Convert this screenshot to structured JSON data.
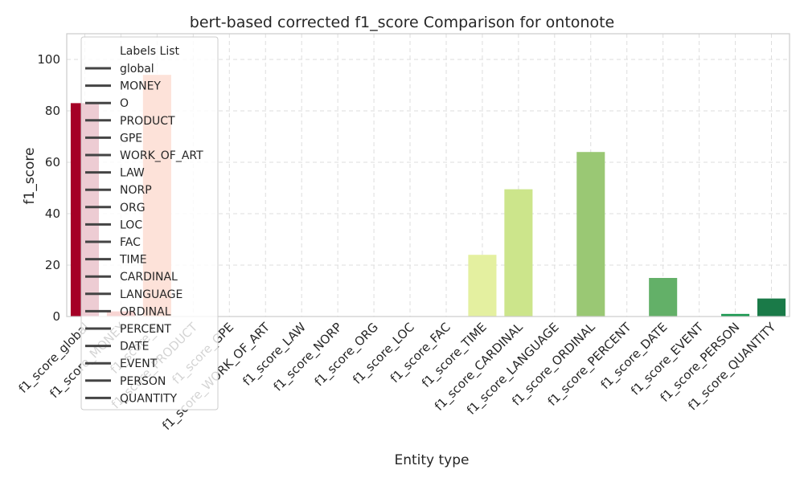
{
  "chart_data": {
    "type": "bar",
    "title": "bert-based corrected f1_score Comparison for ontonote",
    "xlabel": "Entity type",
    "ylabel": "f1_score",
    "ylim": [
      0,
      110
    ],
    "yticks": [
      0,
      20,
      40,
      60,
      80,
      100
    ],
    "grid": true,
    "categories": [
      "f1_score_global",
      "f1_score_MONEY",
      "f1_score_O",
      "f1_score_PRODUCT",
      "f1_score_GPE",
      "f1_score_WORK_OF_ART",
      "f1_score_LAW",
      "f1_score_NORP",
      "f1_score_ORG",
      "f1_score_LOC",
      "f1_score_FAC",
      "f1_score_TIME",
      "f1_score_CARDINAL",
      "f1_score_LANGUAGE",
      "f1_score_ORDINAL",
      "f1_score_PERCENT",
      "f1_score_DATE",
      "f1_score_EVENT",
      "f1_score_PERSON",
      "f1_score_QUANTITY"
    ],
    "values": [
      83,
      2,
      94,
      0,
      0,
      0,
      0,
      0,
      0,
      0,
      0,
      24,
      49.5,
      0,
      64,
      0,
      15,
      0,
      1,
      7
    ],
    "colors": [
      "#a50026",
      "#d73027",
      "#f46d43",
      "#f46d43",
      "#fdae61",
      "#fdae61",
      "#fee08b",
      "#fee08b",
      "#ffffbf",
      "#ffffbf",
      "#d9ef8b",
      "#e4f0a0",
      "#cce58b",
      "#a6d96a",
      "#9ac874",
      "#66bd63",
      "#63b068",
      "#1a9850",
      "#1a9850",
      "#1a7a48"
    ],
    "legend": {
      "title": "Labels List",
      "position": "top-left",
      "entries": [
        "global",
        "MONEY",
        "O",
        "PRODUCT",
        "GPE",
        "WORK_OF_ART",
        "LAW",
        "NORP",
        "ORG",
        "LOC",
        "FAC",
        "TIME",
        "CARDINAL",
        "LANGUAGE",
        "ORDINAL",
        "PERCENT",
        "DATE",
        "EVENT",
        "PERSON",
        "QUANTITY"
      ]
    }
  }
}
